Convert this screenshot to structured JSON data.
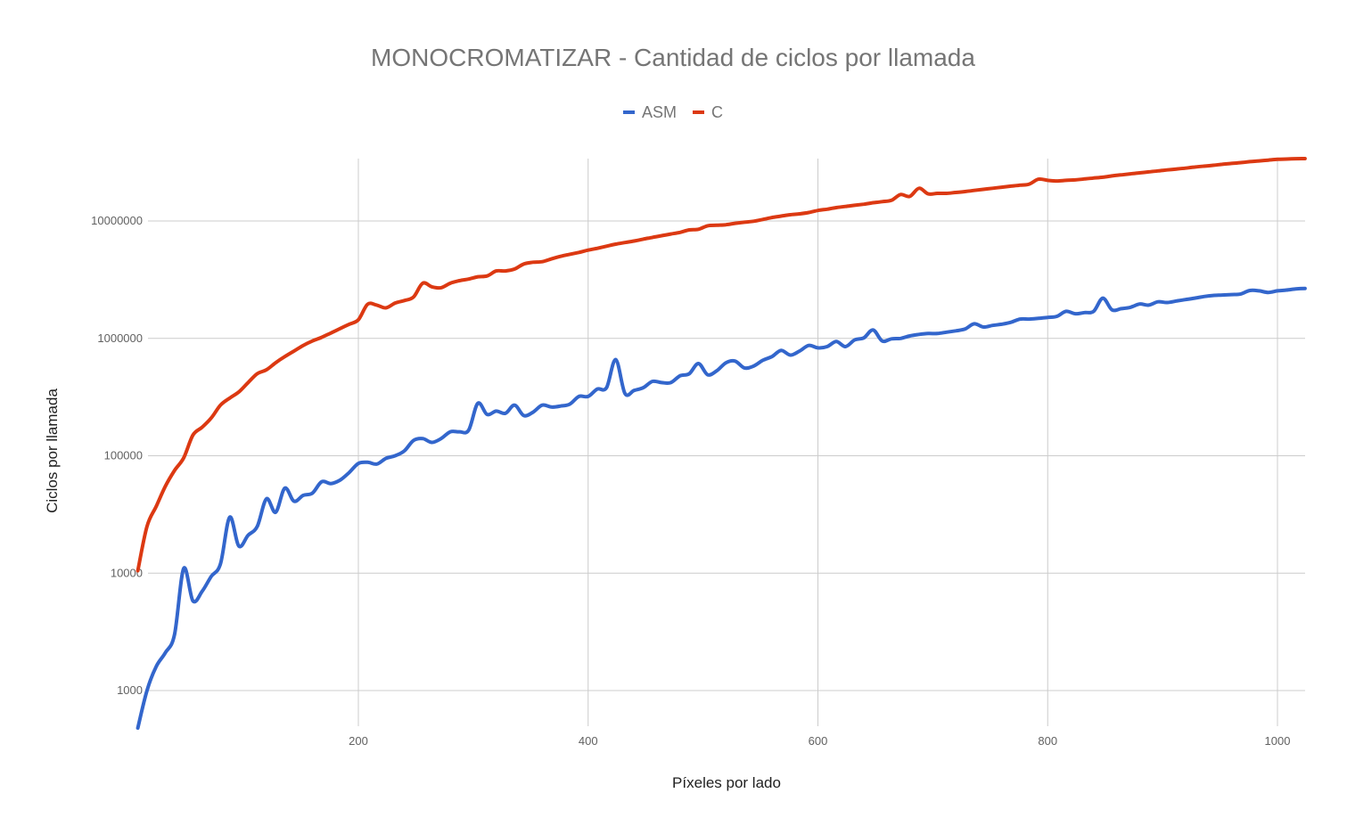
{
  "chart_data": {
    "type": "line",
    "title": "MONOCROMATIZAR - Cantidad de ciclos por llamada",
    "xlabel": "Píxeles por lado",
    "ylabel": "Ciclos por llamada",
    "yscale": "log",
    "xlim": [
      8,
      1024
    ],
    "ylim": [
      470,
      34000000
    ],
    "x_ticks": [
      200,
      400,
      600,
      800,
      1000
    ],
    "y_ticks": [
      1000,
      10000,
      100000,
      1000000,
      10000000
    ],
    "x_tick_labels": [
      "200",
      "400",
      "600",
      "800",
      "1000"
    ],
    "y_tick_labels": [
      "1000",
      "10000",
      "100000",
      "1000000",
      "10000000"
    ],
    "grid": true,
    "legend_position": "top-center",
    "series": [
      {
        "name": "ASM",
        "color": "#3366cc",
        "points": [
          [
            8,
            480
          ],
          [
            16,
            1000
          ],
          [
            24,
            1600
          ],
          [
            32,
            2100
          ],
          [
            40,
            3000
          ],
          [
            48,
            11000
          ],
          [
            56,
            5800
          ],
          [
            64,
            7000
          ],
          [
            72,
            9400
          ],
          [
            80,
            12000
          ],
          [
            88,
            30000
          ],
          [
            96,
            17000
          ],
          [
            104,
            21000
          ],
          [
            112,
            25000
          ],
          [
            120,
            43000
          ],
          [
            128,
            33000
          ],
          [
            136,
            53000
          ],
          [
            144,
            41000
          ],
          [
            152,
            46000
          ],
          [
            160,
            48000
          ],
          [
            168,
            60000
          ],
          [
            176,
            58000
          ],
          [
            184,
            62000
          ],
          [
            192,
            72000
          ],
          [
            200,
            86000
          ],
          [
            208,
            88000
          ],
          [
            216,
            85000
          ],
          [
            224,
            95000
          ],
          [
            232,
            100000
          ],
          [
            240,
            110000
          ],
          [
            248,
            135000
          ],
          [
            256,
            140000
          ],
          [
            264,
            130000
          ],
          [
            272,
            140000
          ],
          [
            280,
            160000
          ],
          [
            288,
            160000
          ],
          [
            296,
            165000
          ],
          [
            304,
            280000
          ],
          [
            312,
            225000
          ],
          [
            320,
            240000
          ],
          [
            328,
            230000
          ],
          [
            336,
            270000
          ],
          [
            344,
            220000
          ],
          [
            352,
            235000
          ],
          [
            360,
            270000
          ],
          [
            368,
            260000
          ],
          [
            376,
            265000
          ],
          [
            384,
            275000
          ],
          [
            392,
            320000
          ],
          [
            400,
            320000
          ],
          [
            408,
            370000
          ],
          [
            416,
            380000
          ],
          [
            424,
            660000
          ],
          [
            432,
            340000
          ],
          [
            440,
            360000
          ],
          [
            448,
            380000
          ],
          [
            456,
            430000
          ],
          [
            464,
            420000
          ],
          [
            472,
            420000
          ],
          [
            480,
            480000
          ],
          [
            488,
            500000
          ],
          [
            496,
            610000
          ],
          [
            504,
            490000
          ],
          [
            512,
            530000
          ],
          [
            520,
            620000
          ],
          [
            528,
            640000
          ],
          [
            536,
            560000
          ],
          [
            544,
            580000
          ],
          [
            552,
            650000
          ],
          [
            560,
            700000
          ],
          [
            568,
            790000
          ],
          [
            576,
            720000
          ],
          [
            584,
            780000
          ],
          [
            592,
            870000
          ],
          [
            600,
            830000
          ],
          [
            608,
            850000
          ],
          [
            616,
            940000
          ],
          [
            624,
            850000
          ],
          [
            632,
            970000
          ],
          [
            640,
            1010000
          ],
          [
            648,
            1180000
          ],
          [
            656,
            950000
          ],
          [
            664,
            990000
          ],
          [
            672,
            1000000
          ],
          [
            680,
            1050000
          ],
          [
            688,
            1080000
          ],
          [
            696,
            1100000
          ],
          [
            704,
            1100000
          ],
          [
            712,
            1130000
          ],
          [
            720,
            1160000
          ],
          [
            728,
            1200000
          ],
          [
            736,
            1330000
          ],
          [
            744,
            1250000
          ],
          [
            752,
            1290000
          ],
          [
            760,
            1320000
          ],
          [
            768,
            1370000
          ],
          [
            776,
            1460000
          ],
          [
            784,
            1460000
          ],
          [
            792,
            1480000
          ],
          [
            800,
            1510000
          ],
          [
            808,
            1540000
          ],
          [
            816,
            1700000
          ],
          [
            824,
            1620000
          ],
          [
            832,
            1660000
          ],
          [
            840,
            1700000
          ],
          [
            848,
            2200000
          ],
          [
            856,
            1750000
          ],
          [
            864,
            1790000
          ],
          [
            872,
            1840000
          ],
          [
            880,
            1960000
          ],
          [
            888,
            1920000
          ],
          [
            896,
            2050000
          ],
          [
            904,
            2020000
          ],
          [
            912,
            2080000
          ],
          [
            920,
            2140000
          ],
          [
            928,
            2200000
          ],
          [
            936,
            2270000
          ],
          [
            944,
            2320000
          ],
          [
            952,
            2340000
          ],
          [
            960,
            2360000
          ],
          [
            968,
            2390000
          ],
          [
            976,
            2560000
          ],
          [
            984,
            2540000
          ],
          [
            992,
            2460000
          ],
          [
            1000,
            2540000
          ],
          [
            1008,
            2580000
          ],
          [
            1016,
            2640000
          ],
          [
            1024,
            2660000
          ]
        ]
      },
      {
        "name": "C",
        "color": "#dc3912",
        "points": [
          [
            8,
            10500
          ],
          [
            16,
            25000
          ],
          [
            24,
            37000
          ],
          [
            32,
            55000
          ],
          [
            40,
            75000
          ],
          [
            48,
            96000
          ],
          [
            56,
            150000
          ],
          [
            64,
            175000
          ],
          [
            72,
            210000
          ],
          [
            80,
            270000
          ],
          [
            88,
            310000
          ],
          [
            96,
            350000
          ],
          [
            104,
            420000
          ],
          [
            112,
            500000
          ],
          [
            120,
            540000
          ],
          [
            128,
            620000
          ],
          [
            136,
            700000
          ],
          [
            144,
            780000
          ],
          [
            152,
            870000
          ],
          [
            160,
            950000
          ],
          [
            168,
            1020000
          ],
          [
            176,
            1110000
          ],
          [
            184,
            1210000
          ],
          [
            192,
            1320000
          ],
          [
            200,
            1440000
          ],
          [
            208,
            1950000
          ],
          [
            216,
            1920000
          ],
          [
            224,
            1820000
          ],
          [
            232,
            2000000
          ],
          [
            240,
            2100000
          ],
          [
            248,
            2250000
          ],
          [
            256,
            2950000
          ],
          [
            264,
            2750000
          ],
          [
            272,
            2700000
          ],
          [
            280,
            2950000
          ],
          [
            288,
            3100000
          ],
          [
            296,
            3200000
          ],
          [
            304,
            3350000
          ],
          [
            312,
            3400000
          ],
          [
            320,
            3750000
          ],
          [
            328,
            3750000
          ],
          [
            336,
            3900000
          ],
          [
            344,
            4300000
          ],
          [
            352,
            4450000
          ],
          [
            360,
            4500000
          ],
          [
            368,
            4750000
          ],
          [
            376,
            5000000
          ],
          [
            384,
            5200000
          ],
          [
            392,
            5400000
          ],
          [
            400,
            5650000
          ],
          [
            408,
            5850000
          ],
          [
            416,
            6100000
          ],
          [
            424,
            6350000
          ],
          [
            432,
            6550000
          ],
          [
            440,
            6750000
          ],
          [
            448,
            7000000
          ],
          [
            456,
            7250000
          ],
          [
            464,
            7500000
          ],
          [
            472,
            7750000
          ],
          [
            480,
            8000000
          ],
          [
            488,
            8400000
          ],
          [
            496,
            8500000
          ],
          [
            504,
            9100000
          ],
          [
            512,
            9200000
          ],
          [
            520,
            9300000
          ],
          [
            528,
            9550000
          ],
          [
            536,
            9750000
          ],
          [
            544,
            9950000
          ],
          [
            552,
            10300000
          ],
          [
            560,
            10700000
          ],
          [
            568,
            11000000
          ],
          [
            576,
            11300000
          ],
          [
            584,
            11500000
          ],
          [
            592,
            11800000
          ],
          [
            600,
            12300000
          ],
          [
            608,
            12600000
          ],
          [
            616,
            13000000
          ],
          [
            624,
            13300000
          ],
          [
            632,
            13600000
          ],
          [
            640,
            13900000
          ],
          [
            648,
            14300000
          ],
          [
            656,
            14600000
          ],
          [
            664,
            15000000
          ],
          [
            672,
            16800000
          ],
          [
            680,
            16200000
          ],
          [
            688,
            19000000
          ],
          [
            696,
            17000000
          ],
          [
            704,
            17200000
          ],
          [
            712,
            17200000
          ],
          [
            720,
            17500000
          ],
          [
            728,
            17800000
          ],
          [
            736,
            18200000
          ],
          [
            744,
            18600000
          ],
          [
            752,
            19000000
          ],
          [
            760,
            19400000
          ],
          [
            768,
            19800000
          ],
          [
            776,
            20200000
          ],
          [
            784,
            20600000
          ],
          [
            792,
            22700000
          ],
          [
            800,
            22200000
          ],
          [
            808,
            21900000
          ],
          [
            816,
            22200000
          ],
          [
            824,
            22400000
          ],
          [
            832,
            22800000
          ],
          [
            840,
            23200000
          ],
          [
            848,
            23600000
          ],
          [
            856,
            24200000
          ],
          [
            864,
            24700000
          ],
          [
            872,
            25200000
          ],
          [
            880,
            25700000
          ],
          [
            888,
            26200000
          ],
          [
            896,
            26700000
          ],
          [
            904,
            27200000
          ],
          [
            912,
            27700000
          ],
          [
            920,
            28200000
          ],
          [
            928,
            28800000
          ],
          [
            936,
            29300000
          ],
          [
            944,
            29800000
          ],
          [
            952,
            30400000
          ],
          [
            960,
            30900000
          ],
          [
            968,
            31400000
          ],
          [
            976,
            32000000
          ],
          [
            984,
            32500000
          ],
          [
            992,
            33000000
          ],
          [
            1000,
            33500000
          ],
          [
            1008,
            33700000
          ],
          [
            1016,
            33900000
          ],
          [
            1024,
            34000000
          ]
        ]
      }
    ]
  }
}
